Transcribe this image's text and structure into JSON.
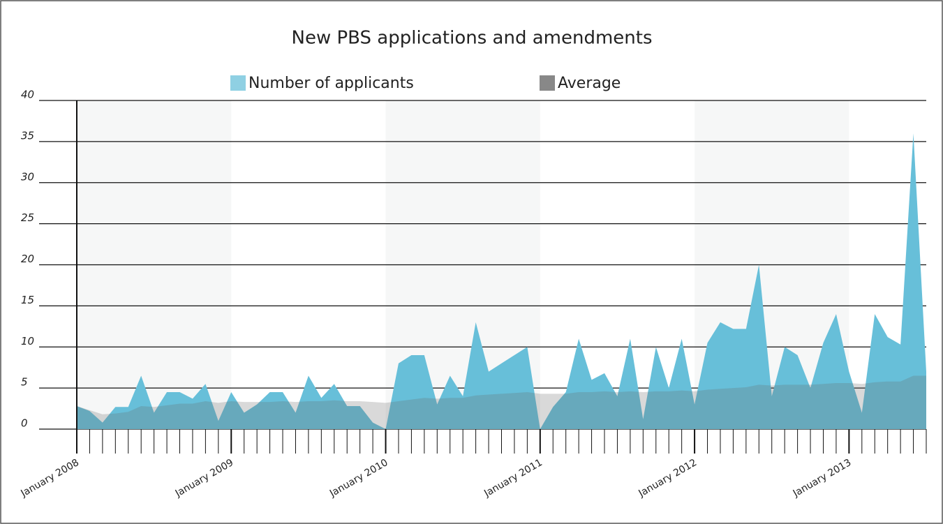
{
  "chart_data": {
    "type": "area",
    "title": "New PBS applications and amendments",
    "categories": [
      "January 2008",
      null,
      null,
      null,
      null,
      null,
      null,
      null,
      null,
      null,
      null,
      null,
      "January 2009",
      null,
      null,
      null,
      null,
      null,
      null,
      null,
      null,
      null,
      null,
      null,
      "January 2010",
      null,
      null,
      null,
      null,
      null,
      null,
      null,
      null,
      null,
      null,
      null,
      "January 2011",
      null,
      null,
      null,
      null,
      null,
      null,
      null,
      null,
      null,
      null,
      null,
      "January 2012",
      null,
      null,
      null,
      null,
      null,
      null,
      null,
      null,
      null,
      null,
      null,
      "January 2013",
      null,
      null,
      null,
      null,
      null,
      null
    ],
    "series": [
      {
        "name": "Number of applicants",
        "color": "#67bfd9",
        "values": [
          2.8,
          2.2,
          0.8,
          2.7,
          2.7,
          6.5,
          2,
          4.5,
          4.5,
          3.7,
          5.5,
          1,
          4.5,
          2,
          3,
          4.5,
          4.5,
          2,
          6.5,
          3.8,
          5.5,
          2.8,
          2.8,
          0.8,
          0,
          8,
          9,
          9,
          3,
          6.5,
          4,
          13,
          7,
          8,
          9,
          10,
          0,
          2.7,
          4.5,
          11,
          6,
          6.8,
          4,
          11,
          1.2,
          10,
          5,
          11,
          3,
          10.5,
          13,
          12.2,
          12.2,
          20,
          4,
          10,
          9,
          5,
          10.5,
          14,
          7,
          2,
          14,
          11.2,
          10.3,
          36,
          7
        ]
      },
      {
        "name": "Average",
        "color": "#666666",
        "values": [
          2.8,
          2.3,
          1.8,
          1.9,
          2.1,
          2.8,
          2.7,
          2.9,
          3.1,
          3.1,
          3.4,
          3.2,
          3.4,
          3.3,
          3.3,
          3.3,
          3.4,
          3.3,
          3.4,
          3.4,
          3.5,
          3.4,
          3.4,
          3.3,
          3.2,
          3.4,
          3.6,
          3.8,
          3.7,
          3.8,
          3.8,
          4.1,
          4.2,
          4.3,
          4.4,
          4.5,
          4.3,
          4.3,
          4.3,
          4.5,
          4.5,
          4.6,
          4.5,
          4.6,
          4.5,
          4.6,
          4.6,
          4.7,
          4.6,
          4.8,
          4.9,
          5,
          5.1,
          5.4,
          5.3,
          5.4,
          5.4,
          5.4,
          5.5,
          5.6,
          5.6,
          5.5,
          5.7,
          5.8,
          5.8,
          6.5,
          6.5
        ]
      }
    ],
    "ylim": [
      0,
      40
    ],
    "yticks": [
      0,
      5,
      10,
      15,
      20,
      25,
      30,
      35,
      40
    ],
    "grid": true
  }
}
